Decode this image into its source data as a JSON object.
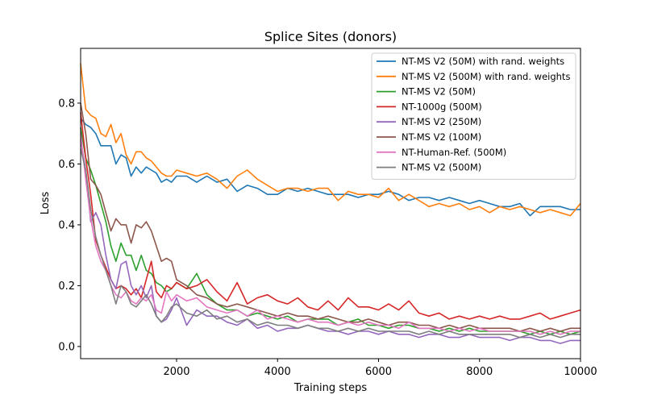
{
  "chart_data": {
    "type": "line",
    "title": "Splice Sites (donors)",
    "xlabel": "Training steps",
    "ylabel": "Loss",
    "xlim": [
      100,
      10000
    ],
    "ylim": [
      -0.04,
      0.98
    ],
    "x_ticks": [
      2000,
      4000,
      6000,
      8000,
      10000
    ],
    "y_ticks": [
      0.0,
      0.2,
      0.4,
      0.6,
      0.8
    ],
    "legend_position": "top-right",
    "grid": false,
    "series": [
      {
        "name": "NT-MS V2 (50M) with rand. weights",
        "color": "#1f77b4",
        "x": [
          100,
          200,
          300,
          400,
          500,
          600,
          700,
          800,
          900,
          1000,
          1100,
          1200,
          1300,
          1400,
          1500,
          1600,
          1700,
          1800,
          1900,
          2000,
          2200,
          2400,
          2600,
          2800,
          3000,
          3200,
          3400,
          3600,
          3800,
          4000,
          4200,
          4400,
          4600,
          4800,
          5000,
          5200,
          5400,
          5600,
          5800,
          6000,
          6200,
          6400,
          6600,
          6800,
          7000,
          7200,
          7400,
          7600,
          7800,
          8000,
          8200,
          8400,
          8600,
          8800,
          9000,
          9200,
          9400,
          9600,
          9800,
          10000
        ],
        "y": [
          0.75,
          0.73,
          0.72,
          0.7,
          0.66,
          0.66,
          0.66,
          0.6,
          0.63,
          0.62,
          0.56,
          0.59,
          0.57,
          0.59,
          0.58,
          0.57,
          0.54,
          0.55,
          0.54,
          0.56,
          0.56,
          0.54,
          0.56,
          0.54,
          0.55,
          0.51,
          0.53,
          0.52,
          0.5,
          0.5,
          0.52,
          0.51,
          0.52,
          0.51,
          0.5,
          0.5,
          0.5,
          0.49,
          0.5,
          0.5,
          0.51,
          0.5,
          0.48,
          0.49,
          0.49,
          0.48,
          0.49,
          0.48,
          0.47,
          0.48,
          0.47,
          0.46,
          0.46,
          0.47,
          0.43,
          0.46,
          0.46,
          0.46,
          0.45,
          0.45
        ]
      },
      {
        "name": "NT-MS V2 (500M) with rand. weights",
        "color": "#ff7f0e",
        "x": [
          100,
          200,
          300,
          400,
          500,
          600,
          700,
          800,
          900,
          1000,
          1100,
          1200,
          1300,
          1400,
          1500,
          1600,
          1700,
          1800,
          1900,
          2000,
          2200,
          2400,
          2600,
          2800,
          3000,
          3200,
          3400,
          3600,
          3800,
          4000,
          4200,
          4400,
          4600,
          4800,
          5000,
          5200,
          5400,
          5600,
          5800,
          6000,
          6200,
          6400,
          6600,
          6800,
          7000,
          7200,
          7400,
          7600,
          7800,
          8000,
          8200,
          8400,
          8600,
          8800,
          9000,
          9200,
          9400,
          9600,
          9800,
          10000
        ],
        "y": [
          0.93,
          0.78,
          0.76,
          0.75,
          0.7,
          0.69,
          0.73,
          0.67,
          0.7,
          0.63,
          0.6,
          0.64,
          0.64,
          0.62,
          0.61,
          0.59,
          0.57,
          0.56,
          0.56,
          0.58,
          0.57,
          0.56,
          0.57,
          0.55,
          0.52,
          0.56,
          0.58,
          0.55,
          0.53,
          0.51,
          0.52,
          0.52,
          0.51,
          0.52,
          0.52,
          0.48,
          0.51,
          0.5,
          0.5,
          0.49,
          0.52,
          0.48,
          0.5,
          0.48,
          0.46,
          0.47,
          0.46,
          0.47,
          0.45,
          0.46,
          0.44,
          0.46,
          0.45,
          0.46,
          0.45,
          0.44,
          0.45,
          0.44,
          0.43,
          0.47
        ]
      },
      {
        "name": "NT-MS V2 (50M)",
        "color": "#2ca02c",
        "x": [
          100,
          200,
          300,
          400,
          500,
          600,
          700,
          800,
          900,
          1000,
          1100,
          1200,
          1300,
          1400,
          1500,
          1600,
          1700,
          1800,
          1900,
          2000,
          2200,
          2400,
          2600,
          2800,
          3000,
          3200,
          3400,
          3600,
          3800,
          4000,
          4200,
          4400,
          4600,
          4800,
          5000,
          5200,
          5400,
          5600,
          5800,
          6000,
          6200,
          6400,
          6600,
          6800,
          7000,
          7200,
          7400,
          7600,
          7800,
          8000,
          8200,
          8400,
          8600,
          8800,
          9000,
          9200,
          9400,
          9600,
          9800,
          10000
        ],
        "y": [
          0.72,
          0.62,
          0.58,
          0.53,
          0.47,
          0.41,
          0.33,
          0.28,
          0.34,
          0.3,
          0.3,
          0.25,
          0.3,
          0.25,
          0.24,
          0.21,
          0.2,
          0.18,
          0.19,
          0.21,
          0.19,
          0.24,
          0.17,
          0.14,
          0.12,
          0.12,
          0.1,
          0.11,
          0.1,
          0.09,
          0.1,
          0.08,
          0.09,
          0.09,
          0.09,
          0.07,
          0.08,
          0.09,
          0.07,
          0.07,
          0.06,
          0.07,
          0.07,
          0.06,
          0.06,
          0.05,
          0.06,
          0.05,
          0.06,
          0.05,
          0.05,
          0.05,
          0.05,
          0.05,
          0.04,
          0.05,
          0.04,
          0.05,
          0.04,
          0.05
        ]
      },
      {
        "name": "NT-1000g (500M)",
        "color": "#d62728",
        "x": [
          100,
          200,
          300,
          400,
          500,
          600,
          700,
          800,
          900,
          1000,
          1100,
          1200,
          1300,
          1400,
          1500,
          1600,
          1700,
          1800,
          1900,
          2000,
          2200,
          2400,
          2600,
          2800,
          3000,
          3200,
          3400,
          3600,
          3800,
          4000,
          4200,
          4400,
          4600,
          4800,
          5000,
          5200,
          5400,
          5600,
          5800,
          6000,
          6200,
          6400,
          6600,
          6800,
          7000,
          7200,
          7400,
          7600,
          7800,
          8000,
          8200,
          8400,
          8600,
          8800,
          9000,
          9200,
          9400,
          9600,
          9800,
          10000
        ],
        "y": [
          0.77,
          0.62,
          0.5,
          0.35,
          0.3,
          0.26,
          0.22,
          0.19,
          0.2,
          0.19,
          0.17,
          0.19,
          0.16,
          0.22,
          0.28,
          0.18,
          0.16,
          0.2,
          0.19,
          0.21,
          0.19,
          0.2,
          0.22,
          0.18,
          0.15,
          0.21,
          0.14,
          0.16,
          0.17,
          0.15,
          0.14,
          0.16,
          0.13,
          0.12,
          0.15,
          0.12,
          0.16,
          0.13,
          0.13,
          0.12,
          0.14,
          0.12,
          0.15,
          0.11,
          0.1,
          0.11,
          0.09,
          0.1,
          0.09,
          0.1,
          0.09,
          0.1,
          0.09,
          0.09,
          0.1,
          0.11,
          0.09,
          0.1,
          0.11,
          0.12
        ]
      },
      {
        "name": "NT-MS V2 (250M)",
        "color": "#9467bd",
        "x": [
          100,
          200,
          300,
          400,
          500,
          600,
          700,
          800,
          900,
          1000,
          1100,
          1200,
          1300,
          1400,
          1500,
          1600,
          1700,
          1800,
          1900,
          2000,
          2200,
          2400,
          2600,
          2800,
          3000,
          3200,
          3400,
          3600,
          3800,
          4000,
          4200,
          4400,
          4600,
          4800,
          5000,
          5200,
          5400,
          5600,
          5800,
          6000,
          6200,
          6400,
          6600,
          6800,
          7000,
          7200,
          7400,
          7600,
          7800,
          8000,
          8200,
          8400,
          8600,
          8800,
          9000,
          9200,
          9400,
          9600,
          9800,
          10000
        ],
        "y": [
          0.68,
          0.58,
          0.41,
          0.44,
          0.4,
          0.3,
          0.22,
          0.19,
          0.27,
          0.28,
          0.2,
          0.17,
          0.2,
          0.16,
          0.2,
          0.1,
          0.08,
          0.09,
          0.12,
          0.16,
          0.07,
          0.12,
          0.1,
          0.1,
          0.08,
          0.07,
          0.09,
          0.06,
          0.07,
          0.05,
          0.06,
          0.06,
          0.07,
          0.06,
          0.05,
          0.05,
          0.04,
          0.05,
          0.05,
          0.04,
          0.05,
          0.04,
          0.04,
          0.03,
          0.04,
          0.04,
          0.03,
          0.03,
          0.04,
          0.03,
          0.03,
          0.03,
          0.02,
          0.03,
          0.03,
          0.02,
          0.02,
          0.01,
          0.02,
          0.02
        ]
      },
      {
        "name": "NT-MS V2 (100M)",
        "color": "#8c564b",
        "x": [
          100,
          200,
          300,
          400,
          500,
          600,
          700,
          800,
          900,
          1000,
          1100,
          1200,
          1300,
          1400,
          1500,
          1600,
          1700,
          1800,
          1900,
          2000,
          2200,
          2400,
          2600,
          2800,
          3000,
          3200,
          3400,
          3600,
          3800,
          4000,
          4200,
          4400,
          4600,
          4800,
          5000,
          5200,
          5400,
          5600,
          5800,
          6000,
          6200,
          6400,
          6600,
          6800,
          7000,
          7200,
          7400,
          7600,
          7800,
          8000,
          8200,
          8400,
          8600,
          8800,
          9000,
          9200,
          9400,
          9600,
          9800,
          10000
        ],
        "y": [
          0.8,
          0.7,
          0.55,
          0.53,
          0.5,
          0.44,
          0.38,
          0.42,
          0.4,
          0.4,
          0.34,
          0.4,
          0.39,
          0.41,
          0.38,
          0.33,
          0.28,
          0.29,
          0.28,
          0.22,
          0.2,
          0.17,
          0.16,
          0.14,
          0.13,
          0.14,
          0.13,
          0.12,
          0.11,
          0.1,
          0.11,
          0.1,
          0.1,
          0.09,
          0.1,
          0.09,
          0.08,
          0.08,
          0.09,
          0.08,
          0.07,
          0.08,
          0.08,
          0.07,
          0.07,
          0.06,
          0.07,
          0.06,
          0.07,
          0.06,
          0.06,
          0.06,
          0.06,
          0.05,
          0.06,
          0.05,
          0.06,
          0.05,
          0.06,
          0.06
        ]
      },
      {
        "name": "NT-Human-Ref. (500M)",
        "color": "#e377c2",
        "x": [
          100,
          200,
          300,
          400,
          500,
          600,
          700,
          800,
          900,
          1000,
          1100,
          1200,
          1300,
          1400,
          1500,
          1600,
          1700,
          1800,
          1900,
          2000,
          2200,
          2400,
          2600,
          2800,
          3000,
          3200,
          3400,
          3600,
          3800,
          4000,
          4200,
          4400,
          4600,
          4800,
          5000,
          5200,
          5400,
          5600,
          5800,
          6000,
          6200,
          6400,
          6600,
          6800,
          7000,
          7200,
          7400,
          7600,
          7800,
          8000,
          8200,
          8400,
          8600,
          8800,
          9000,
          9200,
          9400,
          9600,
          9800,
          10000
        ],
        "y": [
          0.7,
          0.55,
          0.42,
          0.33,
          0.28,
          0.25,
          0.2,
          0.17,
          0.16,
          0.18,
          0.15,
          0.14,
          0.16,
          0.15,
          0.17,
          0.12,
          0.11,
          0.18,
          0.15,
          0.17,
          0.15,
          0.16,
          0.13,
          0.12,
          0.11,
          0.12,
          0.1,
          0.12,
          0.09,
          0.1,
          0.09,
          0.08,
          0.09,
          0.08,
          0.08,
          0.07,
          0.08,
          0.07,
          0.08,
          0.07,
          0.07,
          0.06,
          0.08,
          0.06,
          0.06,
          0.06,
          0.05,
          0.06,
          0.05,
          0.06,
          0.05,
          0.05,
          0.05,
          0.05,
          0.05,
          0.04,
          0.05,
          0.04,
          0.05,
          0.05
        ]
      },
      {
        "name": "NT-MS V2 (500M)",
        "color": "#7f7f7f",
        "x": [
          100,
          200,
          300,
          400,
          500,
          600,
          700,
          800,
          900,
          1000,
          1100,
          1200,
          1300,
          1400,
          1500,
          1600,
          1700,
          1800,
          1900,
          2000,
          2200,
          2400,
          2600,
          2800,
          3000,
          3200,
          3400,
          3600,
          3800,
          4000,
          4200,
          4400,
          4600,
          4800,
          5000,
          5200,
          5400,
          5600,
          5800,
          6000,
          6200,
          6400,
          6600,
          6800,
          7000,
          7200,
          7400,
          7600,
          7800,
          8000,
          8200,
          8400,
          8600,
          8800,
          9000,
          9200,
          9400,
          9600,
          9800,
          10000
        ],
        "y": [
          0.65,
          0.58,
          0.45,
          0.36,
          0.3,
          0.25,
          0.2,
          0.14,
          0.2,
          0.18,
          0.14,
          0.13,
          0.15,
          0.17,
          0.14,
          0.1,
          0.08,
          0.1,
          0.13,
          0.14,
          0.11,
          0.1,
          0.12,
          0.09,
          0.1,
          0.08,
          0.09,
          0.07,
          0.08,
          0.07,
          0.07,
          0.06,
          0.07,
          0.06,
          0.06,
          0.05,
          0.06,
          0.05,
          0.06,
          0.05,
          0.05,
          0.05,
          0.05,
          0.04,
          0.05,
          0.04,
          0.05,
          0.04,
          0.04,
          0.04,
          0.04,
          0.04,
          0.04,
          0.03,
          0.04,
          0.03,
          0.04,
          0.03,
          0.04,
          0.04
        ]
      }
    ]
  }
}
